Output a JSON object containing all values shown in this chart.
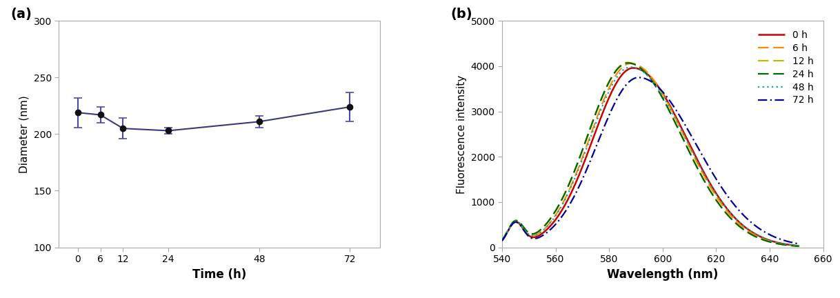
{
  "panel_a": {
    "x": [
      0,
      6,
      12,
      24,
      48,
      72
    ],
    "y": [
      219,
      217,
      205,
      203,
      211,
      224
    ],
    "yerr": [
      13,
      7,
      9,
      3,
      5,
      13
    ],
    "xlabel": "Time (h)",
    "ylabel": "Diameter (nm)",
    "ylim": [
      100,
      300
    ],
    "yticks": [
      100,
      150,
      200,
      250,
      300
    ],
    "line_color": "#3a3a7a",
    "marker_color": "#111111",
    "ecolor": "#4a4aaa",
    "label": "(a)"
  },
  "panel_b": {
    "wavelength_start": 540,
    "wavelength_end": 651,
    "xlabel": "Wavelength (nm)",
    "ylabel": "Fluorescence intensity",
    "ylim": [
      0,
      5000
    ],
    "yticks": [
      0,
      1000,
      2000,
      3000,
      4000,
      5000
    ],
    "xlim": [
      540,
      660
    ],
    "xticks": [
      540,
      560,
      580,
      600,
      620,
      640,
      660
    ],
    "label": "(b)",
    "series": [
      {
        "label": "0 h",
        "color": "#cc0000",
        "linestyle": "solid",
        "peak": 3960,
        "peak_wl": 589,
        "sigma_l": 15.0,
        "sigma_r": 20.0,
        "base": 510
      },
      {
        "label": "6 h",
        "color": "#ff8c00",
        "linestyle": "dashed",
        "peak": 4060,
        "peak_wl": 588,
        "sigma_l": 15.0,
        "sigma_r": 20.0,
        "base": 510
      },
      {
        "label": "12 h",
        "color": "#bbbb00",
        "linestyle": "dashed",
        "peak": 4080,
        "peak_wl": 587,
        "sigma_l": 15.0,
        "sigma_r": 20.0,
        "base": 510
      },
      {
        "label": "24 h",
        "color": "#006600",
        "linestyle": "dashed",
        "peak": 4070,
        "peak_wl": 587,
        "sigma_l": 15.0,
        "sigma_r": 20.0,
        "base": 510
      },
      {
        "label": "48 h",
        "color": "#00aaaa",
        "linestyle": "dotted",
        "peak": 3980,
        "peak_wl": 588,
        "sigma_l": 15.0,
        "sigma_r": 20.5,
        "base": 510
      },
      {
        "label": "72 h",
        "color": "#000099",
        "linestyle": "dashdot",
        "peak": 3750,
        "peak_wl": 591,
        "sigma_l": 15.5,
        "sigma_r": 21.5,
        "base": 510
      }
    ]
  }
}
